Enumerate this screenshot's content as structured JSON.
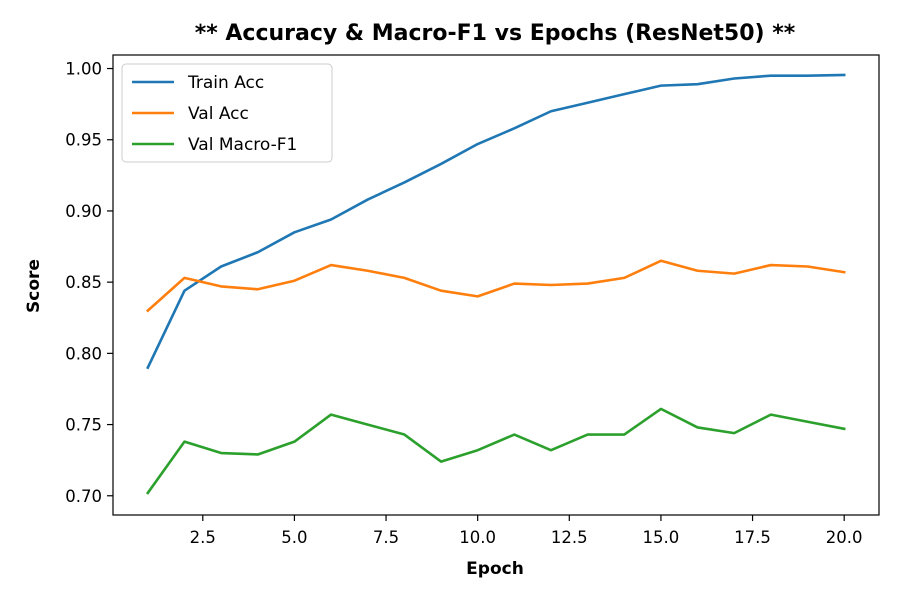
{
  "chart_data": {
    "type": "line",
    "title": "** Accuracy & Macro-F1 vs Epochs (ResNet50) **",
    "xlabel": "Epoch",
    "ylabel": "Score",
    "xlim": [
      0.05,
      20.95
    ],
    "ylim": [
      0.6865,
      1.0095
    ],
    "xticks": [
      2.5,
      5.0,
      7.5,
      10.0,
      12.5,
      15.0,
      17.5,
      20.0
    ],
    "xtick_labels": [
      "2.5",
      "5.0",
      "7.5",
      "10.0",
      "12.5",
      "15.0",
      "17.5",
      "20.0"
    ],
    "yticks": [
      0.7,
      0.75,
      0.8,
      0.85,
      0.9,
      0.95,
      1.0
    ],
    "ytick_labels": [
      "0.70",
      "0.75",
      "0.80",
      "0.85",
      "0.90",
      "0.95",
      "1.00"
    ],
    "grid": false,
    "legend_position": "top-left",
    "x": [
      1,
      2,
      3,
      4,
      5,
      6,
      7,
      8,
      9,
      10,
      11,
      12,
      13,
      14,
      15,
      16,
      17,
      18,
      19,
      20
    ],
    "series": [
      {
        "name": "Train Acc",
        "color": "#1f77b4",
        "values": [
          0.79,
          0.844,
          0.861,
          0.871,
          0.885,
          0.894,
          0.908,
          0.92,
          0.933,
          0.947,
          0.958,
          0.97,
          0.976,
          0.982,
          0.988,
          0.989,
          0.993,
          0.995,
          0.995,
          0.9955
        ]
      },
      {
        "name": "Val Acc",
        "color": "#ff7f0e",
        "values": [
          0.83,
          0.853,
          0.847,
          0.845,
          0.851,
          0.862,
          0.858,
          0.853,
          0.844,
          0.84,
          0.849,
          0.848,
          0.849,
          0.853,
          0.865,
          0.858,
          0.856,
          0.862,
          0.861,
          0.857
        ]
      },
      {
        "name": "Val Macro-F1",
        "color": "#2ca02c",
        "values": [
          0.702,
          0.738,
          0.73,
          0.729,
          0.738,
          0.757,
          0.75,
          0.743,
          0.724,
          0.732,
          0.743,
          0.732,
          0.743,
          0.743,
          0.761,
          0.748,
          0.744,
          0.757,
          0.752,
          0.747
        ]
      }
    ]
  }
}
